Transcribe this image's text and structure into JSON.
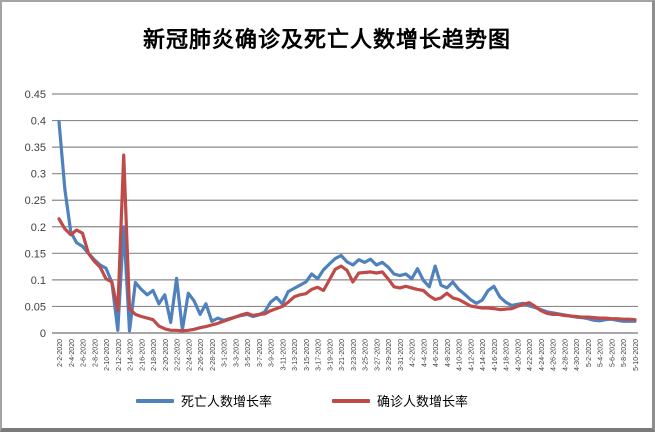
{
  "title": "新冠肺炎确诊及死亡人数增长趋势图",
  "legend": [
    {
      "label": "死亡人数增长率",
      "color": "#4F81BD"
    },
    {
      "label": "确诊人数增长率",
      "color": "#BE4B48"
    }
  ],
  "chart_data": {
    "type": "line",
    "title": "新冠肺炎确诊及死亡人数增长趋势图",
    "xlabel": "",
    "ylabel": "",
    "ylim": [
      0,
      0.45
    ],
    "y_tick_step": 0.05,
    "y_tick_labels": [
      "0",
      "0.05",
      "0.1",
      "0.15",
      "0.2",
      "0.25",
      "0.3",
      "0.35",
      "0.4",
      "0.45"
    ],
    "grid": true,
    "gridline_color": "#8a8a8a",
    "axis_text_color": "#3f3f3f",
    "legend_position": "bottom",
    "x_tick_labels": [
      "2-2-2020",
      "2-4-2020",
      "2-6-2020",
      "2-8-2020",
      "2-10-2020",
      "2-12-2020",
      "2-14-2020",
      "2-16-2020",
      "2-18-2020",
      "2-20-2020",
      "2-22-2020",
      "2-24-2020",
      "2-26-2020",
      "2-28-2020",
      "3-1-2020",
      "3-3-2020",
      "3-5-2020",
      "3-7-2020",
      "3-9-2020",
      "3-11-2020",
      "3-13-2020",
      "3-15-2020",
      "3-17-2020",
      "3-19-2020",
      "3-21-2020",
      "3-23-2020",
      "3-25-2020",
      "3-27-2020",
      "3-29-2020",
      "3-31-2020",
      "4-2-2020",
      "4-4-2020",
      "4-6-2020",
      "4-8-2020",
      "4-10-2020",
      "4-12-2020",
      "4-14-2020",
      "4-16-2020",
      "4-18-2020",
      "4-20-2020",
      "4-22-2020",
      "4-24-2020",
      "4-26-2020",
      "4-28-2020",
      "4-30-2020",
      "5-2-2020",
      "5-4-2020",
      "5-6-2020",
      "5-8-2020",
      "5-10-2020"
    ],
    "x": [
      "2-2-2020",
      "2-3-2020",
      "2-4-2020",
      "2-5-2020",
      "2-6-2020",
      "2-7-2020",
      "2-8-2020",
      "2-9-2020",
      "2-10-2020",
      "2-11-2020",
      "2-12-2020",
      "2-13-2020",
      "2-14-2020",
      "2-15-2020",
      "2-16-2020",
      "2-17-2020",
      "2-18-2020",
      "2-19-2020",
      "2-20-2020",
      "2-21-2020",
      "2-22-2020",
      "2-23-2020",
      "2-24-2020",
      "2-25-2020",
      "2-26-2020",
      "2-27-2020",
      "2-28-2020",
      "2-29-2020",
      "3-1-2020",
      "3-2-2020",
      "3-3-2020",
      "3-4-2020",
      "3-5-2020",
      "3-6-2020",
      "3-7-2020",
      "3-8-2020",
      "3-9-2020",
      "3-10-2020",
      "3-11-2020",
      "3-12-2020",
      "3-13-2020",
      "3-14-2020",
      "3-15-2020",
      "3-16-2020",
      "3-17-2020",
      "3-18-2020",
      "3-19-2020",
      "3-20-2020",
      "3-21-2020",
      "3-22-2020",
      "3-23-2020",
      "3-24-2020",
      "3-25-2020",
      "3-26-2020",
      "3-27-2020",
      "3-28-2020",
      "3-29-2020",
      "3-30-2020",
      "3-31-2020",
      "4-1-2020",
      "4-2-2020",
      "4-3-2020",
      "4-4-2020",
      "4-5-2020",
      "4-6-2020",
      "4-7-2020",
      "4-8-2020",
      "4-9-2020",
      "4-10-2020",
      "4-11-2020",
      "4-12-2020",
      "4-13-2020",
      "4-14-2020",
      "4-15-2020",
      "4-16-2020",
      "4-17-2020",
      "4-18-2020",
      "4-19-2020",
      "4-20-2020",
      "4-21-2020",
      "4-22-2020",
      "4-23-2020",
      "4-24-2020",
      "4-25-2020",
      "4-26-2020",
      "4-27-2020",
      "4-28-2020",
      "4-29-2020",
      "4-30-2020",
      "5-1-2020",
      "5-2-2020",
      "5-3-2020",
      "5-4-2020",
      "5-5-2020",
      "5-6-2020",
      "5-7-2020",
      "5-8-2020",
      "5-9-2020",
      "5-10-2020"
    ],
    "series": [
      {
        "name": "死亡人数增长率",
        "color": "#4F81BD",
        "values": [
          0.398,
          0.27,
          0.19,
          0.17,
          0.163,
          0.15,
          0.138,
          0.128,
          0.122,
          0.095,
          0.005,
          0.2,
          0.004,
          0.095,
          0.082,
          0.072,
          0.08,
          0.055,
          0.072,
          0.02,
          0.103,
          0.006,
          0.075,
          0.06,
          0.035,
          0.055,
          0.022,
          0.028,
          0.024,
          0.027,
          0.03,
          0.033,
          0.035,
          0.031,
          0.034,
          0.04,
          0.058,
          0.067,
          0.055,
          0.078,
          0.084,
          0.09,
          0.096,
          0.111,
          0.102,
          0.119,
          0.13,
          0.14,
          0.146,
          0.134,
          0.128,
          0.138,
          0.133,
          0.139,
          0.128,
          0.133,
          0.124,
          0.111,
          0.108,
          0.111,
          0.102,
          0.121,
          0.099,
          0.087,
          0.126,
          0.09,
          0.085,
          0.096,
          0.082,
          0.073,
          0.063,
          0.056,
          0.062,
          0.08,
          0.088,
          0.068,
          0.058,
          0.052,
          0.054,
          0.056,
          0.051,
          0.048,
          0.044,
          0.04,
          0.038,
          0.036,
          0.034,
          0.032,
          0.03,
          0.029,
          0.027,
          0.024,
          0.023,
          0.025,
          0.026,
          0.024,
          0.022,
          0.022,
          0.022
        ]
      },
      {
        "name": "确诊人数增长率",
        "color": "#BE4B48",
        "values": [
          0.215,
          0.196,
          0.185,
          0.194,
          0.188,
          0.15,
          0.135,
          0.124,
          0.102,
          0.096,
          0.042,
          0.335,
          0.046,
          0.035,
          0.031,
          0.028,
          0.025,
          0.013,
          0.008,
          0.005,
          0.005,
          0.004,
          0.005,
          0.007,
          0.01,
          0.012,
          0.015,
          0.018,
          0.022,
          0.026,
          0.03,
          0.034,
          0.037,
          0.033,
          0.035,
          0.036,
          0.042,
          0.046,
          0.05,
          0.058,
          0.068,
          0.072,
          0.074,
          0.082,
          0.086,
          0.08,
          0.1,
          0.12,
          0.126,
          0.118,
          0.096,
          0.113,
          0.114,
          0.115,
          0.113,
          0.115,
          0.102,
          0.087,
          0.085,
          0.088,
          0.085,
          0.082,
          0.08,
          0.07,
          0.063,
          0.066,
          0.075,
          0.066,
          0.063,
          0.057,
          0.051,
          0.049,
          0.047,
          0.047,
          0.046,
          0.044,
          0.045,
          0.046,
          0.05,
          0.054,
          0.057,
          0.05,
          0.042,
          0.037,
          0.035,
          0.035,
          0.033,
          0.032,
          0.031,
          0.03,
          0.03,
          0.029,
          0.028,
          0.028,
          0.027,
          0.027,
          0.026,
          0.026,
          0.025
        ]
      }
    ]
  }
}
